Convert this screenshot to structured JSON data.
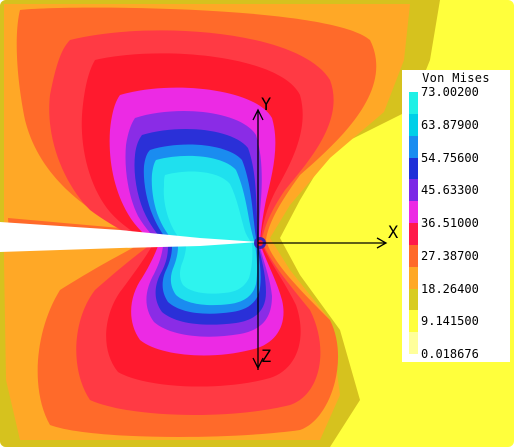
{
  "axes": {
    "x_label": "X",
    "y_label": "Y",
    "z_label": "Z"
  },
  "legend": {
    "title": "Von Mises",
    "ticks": [
      "73.00200",
      "63.87900",
      "54.75600",
      "45.63300",
      "36.51000",
      "27.38700",
      "18.26400",
      "9.141500",
      "0.018676"
    ],
    "colors": [
      "#1ff0e6",
      "#00cfe8",
      "#1a8cf0",
      "#1f2fd8",
      "#7b28e6",
      "#ec2ae4",
      "#ff1a4a",
      "#ff6a2a",
      "#ffa826",
      "#d8cc22",
      "#ffff3c",
      "#ffff9a"
    ]
  },
  "field_colors": {
    "outer": "#ffff3c",
    "olive": "#d6c21e",
    "orange_light": "#ffa826",
    "orange": "#ff6a2a",
    "red_outer": "#ff3a44",
    "red": "#ff1a2e",
    "magenta": "#ec2ae4",
    "violet": "#8a2ce6",
    "blue": "#2a30d8",
    "sky": "#1a8cf0",
    "cyan": "#1fe0ee",
    "cyan_core": "#2ef4ee"
  }
}
